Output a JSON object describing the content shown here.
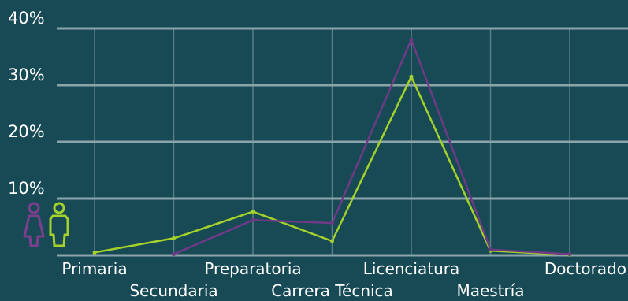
{
  "chart_data": {
    "type": "line",
    "categories": [
      "Primaria",
      "Secundaria",
      "Preparatoria",
      "Carrera Técnica",
      "Licenciatura",
      "Maestría",
      "Doctorado"
    ],
    "series": [
      {
        "values": [
          0.5,
          3.0,
          7.7,
          2.5,
          31.5,
          0.8,
          0.1
        ],
        "color": "#a4d12a"
      },
      {
        "values": [
          null,
          0.2,
          6.2,
          5.7,
          38.0,
          1.0,
          0.2
        ],
        "color": "#6e3a86"
      }
    ],
    "yticks": [
      "10%",
      "20%",
      "30%",
      "40%"
    ],
    "ylim": [
      0,
      40
    ],
    "grid": true,
    "legend_icons": [
      {
        "icon": "female-person-icon",
        "color": "#7b3f8f"
      },
      {
        "icon": "male-person-icon",
        "color": "#a4d12a"
      }
    ]
  }
}
